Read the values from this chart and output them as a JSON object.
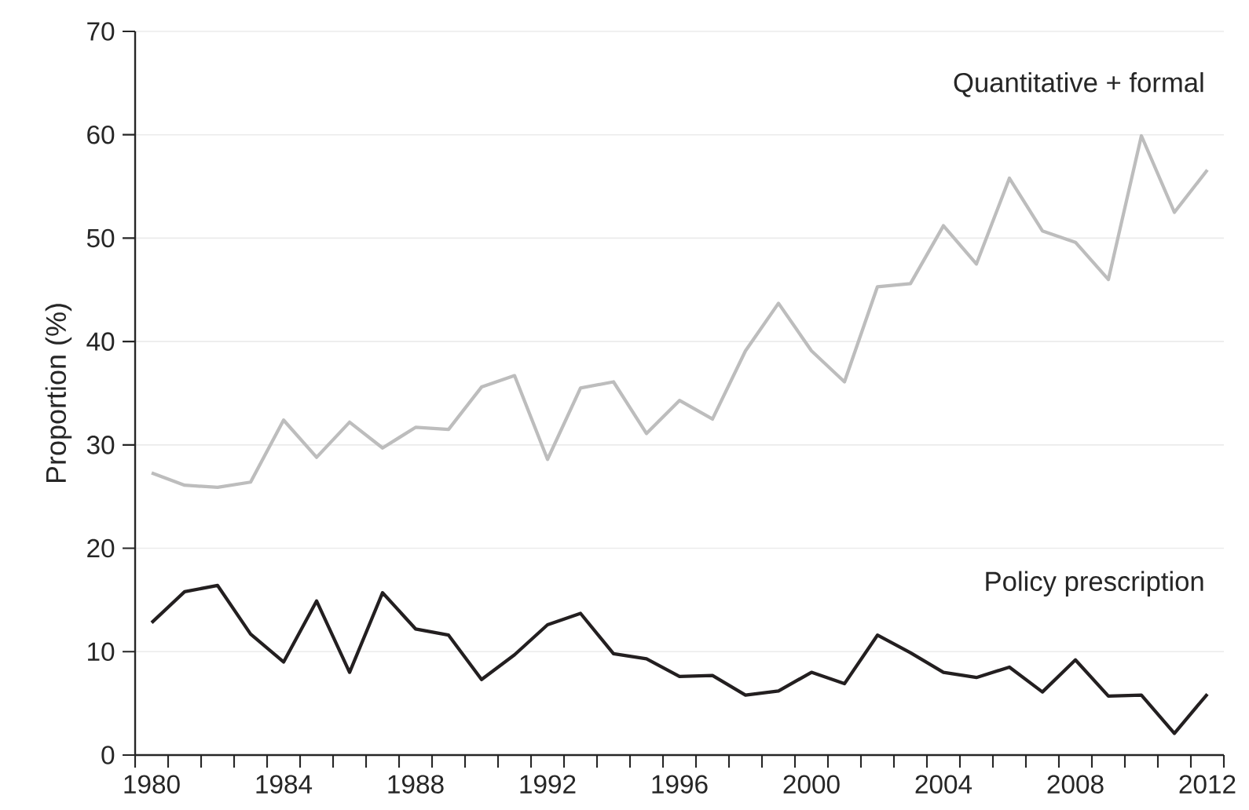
{
  "chart_data": {
    "type": "line",
    "ylabel": "Proportion (%)",
    "x": [
      1980,
      1981,
      1982,
      1983,
      1984,
      1985,
      1986,
      1987,
      1988,
      1989,
      1990,
      1991,
      1992,
      1993,
      1994,
      1995,
      1996,
      1997,
      1998,
      1999,
      2000,
      2001,
      2002,
      2003,
      2004,
      2005,
      2006,
      2007,
      2008,
      2009,
      2010,
      2011,
      2012
    ],
    "series": [
      {
        "name": "Quantitative + formal",
        "color": "#bdbdbd",
        "values": [
          27.3,
          26.1,
          25.9,
          26.4,
          32.4,
          28.8,
          32.2,
          29.7,
          31.7,
          31.5,
          35.6,
          36.7,
          28.6,
          35.5,
          36.1,
          31.1,
          34.3,
          32.5,
          39.1,
          43.7,
          39.1,
          36.1,
          45.3,
          45.6,
          51.2,
          47.5,
          55.8,
          50.7,
          49.6,
          46.0,
          59.9,
          52.5,
          56.6
        ]
      },
      {
        "name": "Policy prescription",
        "color": "#231f20",
        "values": [
          12.8,
          15.8,
          16.4,
          11.7,
          9.0,
          14.9,
          8.0,
          15.7,
          12.2,
          11.6,
          7.3,
          9.7,
          12.6,
          13.7,
          9.8,
          9.3,
          7.6,
          7.7,
          5.8,
          6.2,
          8.0,
          6.9,
          11.6,
          9.9,
          8.0,
          7.5,
          8.5,
          6.1,
          9.2,
          5.7,
          5.8,
          2.1,
          5.9
        ]
      }
    ],
    "xlim": [
      1979.5,
      2012.5
    ],
    "xticks": [
      1980,
      1984,
      1988,
      1992,
      1996,
      2000,
      2004,
      2008,
      2012,
      {
        "value": 1979.5,
        "label": null
      },
      {
        "value": 1980.5,
        "label": null
      },
      {
        "value": 1981.5,
        "label": null
      },
      {
        "value": 1982.5,
        "label": null
      },
      {
        "value": 1983.5,
        "label": null
      },
      {
        "value": 1984.5,
        "label": null
      },
      {
        "value": 1985.5,
        "label": null
      },
      {
        "value": 1986.5,
        "label": null
      },
      {
        "value": 1987.5,
        "label": null
      },
      {
        "value": 1988.5,
        "label": null
      },
      {
        "value": 1989.5,
        "label": null
      },
      {
        "value": 1990.5,
        "label": null
      },
      {
        "value": 1991.5,
        "label": null
      },
      {
        "value": 1992.5,
        "label": null
      },
      {
        "value": 1993.5,
        "label": null
      },
      {
        "value": 1994.5,
        "label": null
      },
      {
        "value": 1995.5,
        "label": null
      },
      {
        "value": 1996.5,
        "label": null
      },
      {
        "value": 1997.5,
        "label": null
      },
      {
        "value": 1998.5,
        "label": null
      },
      {
        "value": 1999.5,
        "label": null
      },
      {
        "value": 2000.5,
        "label": null
      },
      {
        "value": 2001.5,
        "label": null
      },
      {
        "value": 2002.5,
        "label": null
      },
      {
        "value": 2003.5,
        "label": null
      },
      {
        "value": 2004.5,
        "label": null
      },
      {
        "value": 2005.5,
        "label": null
      },
      {
        "value": 2006.5,
        "label": null
      },
      {
        "value": 2007.5,
        "label": null
      },
      {
        "value": 2008.5,
        "label": null
      },
      {
        "value": 2009.5,
        "label": null
      },
      {
        "value": 2010.5,
        "label": null
      },
      {
        "value": 2011.5,
        "label": null
      },
      {
        "value": 2012.5,
        "label": null
      }
    ],
    "ylim": [
      0,
      70
    ],
    "yticks": [
      0,
      10,
      20,
      30,
      40,
      50,
      60,
      70
    ],
    "grid": "y",
    "legend": false,
    "marker": "none",
    "line_style": "solid"
  }
}
